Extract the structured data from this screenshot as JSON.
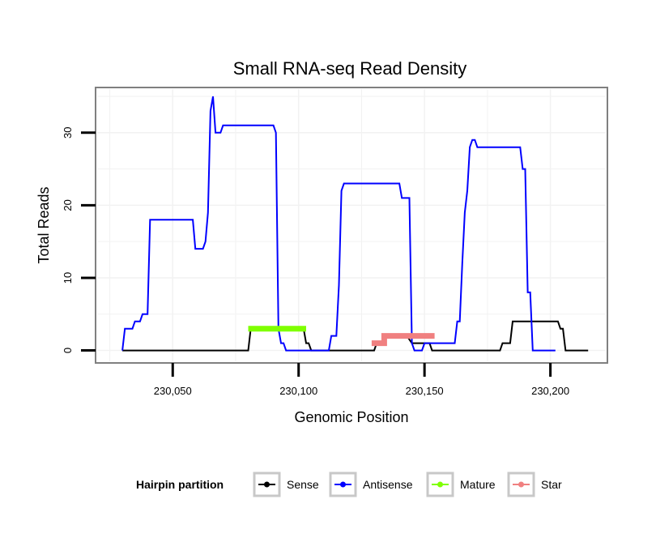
{
  "chart_data": {
    "type": "line",
    "title": "Small RNA-seq Read Density",
    "xlabel": "Genomic Position",
    "ylabel": "Total Reads",
    "xlim": [
      230020,
      230222
    ],
    "ylim": [
      -1.5,
      36
    ],
    "x_ticks": [
      230050,
      230100,
      230150,
      230200
    ],
    "x_tick_labels": [
      "230,050",
      "230,100",
      "230,150",
      "230,200"
    ],
    "y_ticks": [
      0,
      10,
      20,
      30
    ],
    "y_tick_labels": [
      "0",
      "10",
      "20",
      "30"
    ],
    "legend": {
      "title": "Hairpin partition",
      "position": "bottom",
      "entries": [
        "Sense",
        "Antisense",
        "Mature",
        "Star"
      ]
    },
    "series": [
      {
        "name": "Sense",
        "color": "#000000",
        "width": 2,
        "points": [
          [
            230030,
            0
          ],
          [
            230080,
            0
          ],
          [
            230081,
            3
          ],
          [
            230102,
            3
          ],
          [
            230103,
            1
          ],
          [
            230104,
            1
          ],
          [
            230105,
            0
          ],
          [
            230130,
            0
          ],
          [
            230131,
            1
          ],
          [
            230134,
            1
          ],
          [
            230135,
            2
          ],
          [
            230143,
            2
          ],
          [
            230145,
            1
          ],
          [
            230152,
            1
          ],
          [
            230153,
            0
          ],
          [
            230180,
            0
          ],
          [
            230181,
            1
          ],
          [
            230184,
            1
          ],
          [
            230185,
            4
          ],
          [
            230203,
            4
          ],
          [
            230204,
            3
          ],
          [
            230205,
            3
          ],
          [
            230206,
            0
          ],
          [
            230215,
            0
          ]
        ]
      },
      {
        "name": "Antisense",
        "color": "#0000ff",
        "width": 2,
        "points": [
          [
            230030,
            0
          ],
          [
            230031,
            3
          ],
          [
            230034,
            3
          ],
          [
            230035,
            4
          ],
          [
            230037,
            4
          ],
          [
            230038,
            5
          ],
          [
            230040,
            5
          ],
          [
            230041,
            18
          ],
          [
            230058,
            18
          ],
          [
            230059,
            14
          ],
          [
            230062,
            14
          ],
          [
            230063,
            15
          ],
          [
            230064,
            19
          ],
          [
            230065,
            33
          ],
          [
            230066,
            35
          ],
          [
            230067,
            30
          ],
          [
            230069,
            30
          ],
          [
            230070,
            31
          ],
          [
            230090,
            31
          ],
          [
            230091,
            30
          ],
          [
            230092,
            3
          ],
          [
            230093,
            1
          ],
          [
            230094,
            1
          ],
          [
            230095,
            0
          ],
          [
            230112,
            0
          ],
          [
            230113,
            2
          ],
          [
            230115,
            2
          ],
          [
            230116,
            9
          ],
          [
            230117,
            22
          ],
          [
            230118,
            23
          ],
          [
            230140,
            23
          ],
          [
            230141,
            21
          ],
          [
            230144,
            21
          ],
          [
            230145,
            1
          ],
          [
            230146,
            0
          ],
          [
            230149,
            0
          ],
          [
            230150,
            1
          ],
          [
            230162,
            1
          ],
          [
            230163,
            4
          ],
          [
            230164,
            4
          ],
          [
            230165,
            12
          ],
          [
            230166,
            19
          ],
          [
            230167,
            22
          ],
          [
            230168,
            28
          ],
          [
            230169,
            29
          ],
          [
            230170,
            29
          ],
          [
            230171,
            28
          ],
          [
            230188,
            28
          ],
          [
            230189,
            25
          ],
          [
            230190,
            25
          ],
          [
            230191,
            8
          ],
          [
            230192,
            8
          ],
          [
            230193,
            0
          ],
          [
            230202,
            0
          ]
        ]
      },
      {
        "name": "Mature",
        "color": "#7fff00",
        "width": 7,
        "points": [
          [
            230080,
            3
          ],
          [
            230103,
            3
          ]
        ]
      },
      {
        "name": "Star",
        "color": "#f08080",
        "width": 7,
        "points": [
          [
            230129,
            1
          ],
          [
            230134,
            1
          ],
          [
            230134,
            2
          ],
          [
            230154,
            2
          ]
        ]
      }
    ]
  }
}
